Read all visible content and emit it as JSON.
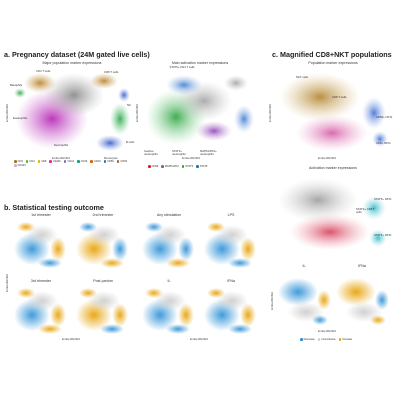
{
  "sections": {
    "a": "a. Pregnancy dataset (24M gated live cells)",
    "b": "b. Statistical testing outcome",
    "c": "c. Magnified CD8+NKT populations"
  },
  "panel_a": {
    "left_title": "Major population marker expressions",
    "right_title": "Main activation marker expressions",
    "x_label": "EmbedSOM1",
    "y_label": "EmbedSOM2",
    "annotations_left": [
      "CD4 T cells",
      "CD8 T cells",
      "NK",
      "B cells",
      "Neutrophils",
      "Monocytes",
      "Basophils",
      "Eosinophils",
      "Dendritic cells"
    ],
    "annotations_right": [
      "STAT5+ CD4 T cells",
      "Inactive neutrophils",
      "STAT3+ neutrophils",
      "MAPKAPK2+ neutrophils"
    ],
    "legend_left": [
      {
        "label": "CD3",
        "color": "#a6761d"
      },
      {
        "label": "CD4",
        "color": "#66a61e"
      },
      {
        "label": "CD8",
        "color": "#e6ab02"
      },
      {
        "label": "CD11b",
        "color": "#e7298a"
      },
      {
        "label": "CD14",
        "color": "#7570b3"
      },
      {
        "label": "CD16",
        "color": "#1b9e77"
      },
      {
        "label": "CD19",
        "color": "#d95f02"
      },
      {
        "label": "CD56",
        "color": "#1f78b4"
      },
      {
        "label": "CD66",
        "color": "#b15928"
      },
      {
        "label": "CD123",
        "color": "#cab2d6"
      }
    ],
    "legend_right": [
      {
        "label": "CD69",
        "color": "#e31a1c"
      },
      {
        "label": "MAPKAPK2",
        "color": "#984ea3"
      },
      {
        "label": "STAT3",
        "color": "#33a02c"
      },
      {
        "label": "STAT5",
        "color": "#1f78b4"
      }
    ]
  },
  "panel_b": {
    "titles": [
      "1st trimester",
      "2nd trimester",
      "Any stimulation",
      "LPS",
      "3rd trimester",
      "Post-partum",
      "IL",
      "IFNa"
    ],
    "x_label": "EmbedSOM1",
    "y_label": "EmbedSOM2"
  },
  "panel_c": {
    "top_title": "Population marker expressions",
    "mid_title": "Activation marker expressions",
    "bottom_titles": [
      "IL",
      "IFNa"
    ],
    "x_label": "EmbedSOM1",
    "y_label": "EmbedSOM2",
    "annotations_top": [
      "NKT cells",
      "CD8 T cells",
      "CD56+ NKTs",
      "CD8+ NKTs"
    ],
    "annotations_mid": [
      "STAT5+ NKTs",
      "STAT3+ CD8 T cells",
      "STAT5+ NKTs"
    ],
    "legend": [
      {
        "label": "Decrease",
        "color": "#2b8fd6"
      },
      {
        "label": "Inconclusive",
        "color": "#cccccc"
      },
      {
        "label": "Increase",
        "color": "#e69f00"
      }
    ]
  },
  "colors": {
    "cd4": "#2c9a4a",
    "cd8": "#c7852a",
    "nk": "#3a6fd1",
    "b_cells": "#2fa84f",
    "neutrophils": "#c23bbd",
    "monocytes": "#4c4fb8",
    "gray": "#8a8a8a",
    "decrease": "#2b8fd6",
    "increase": "#e69f00",
    "inconclusive": "#cccccc",
    "act_green": "#38a84a",
    "act_blue": "#3f7fd0",
    "act_purple": "#8d44b5",
    "nkt_brown": "#b58a3a",
    "nkt_pink": "#d65aa4",
    "nkt_blue": "#3d6fd4"
  }
}
